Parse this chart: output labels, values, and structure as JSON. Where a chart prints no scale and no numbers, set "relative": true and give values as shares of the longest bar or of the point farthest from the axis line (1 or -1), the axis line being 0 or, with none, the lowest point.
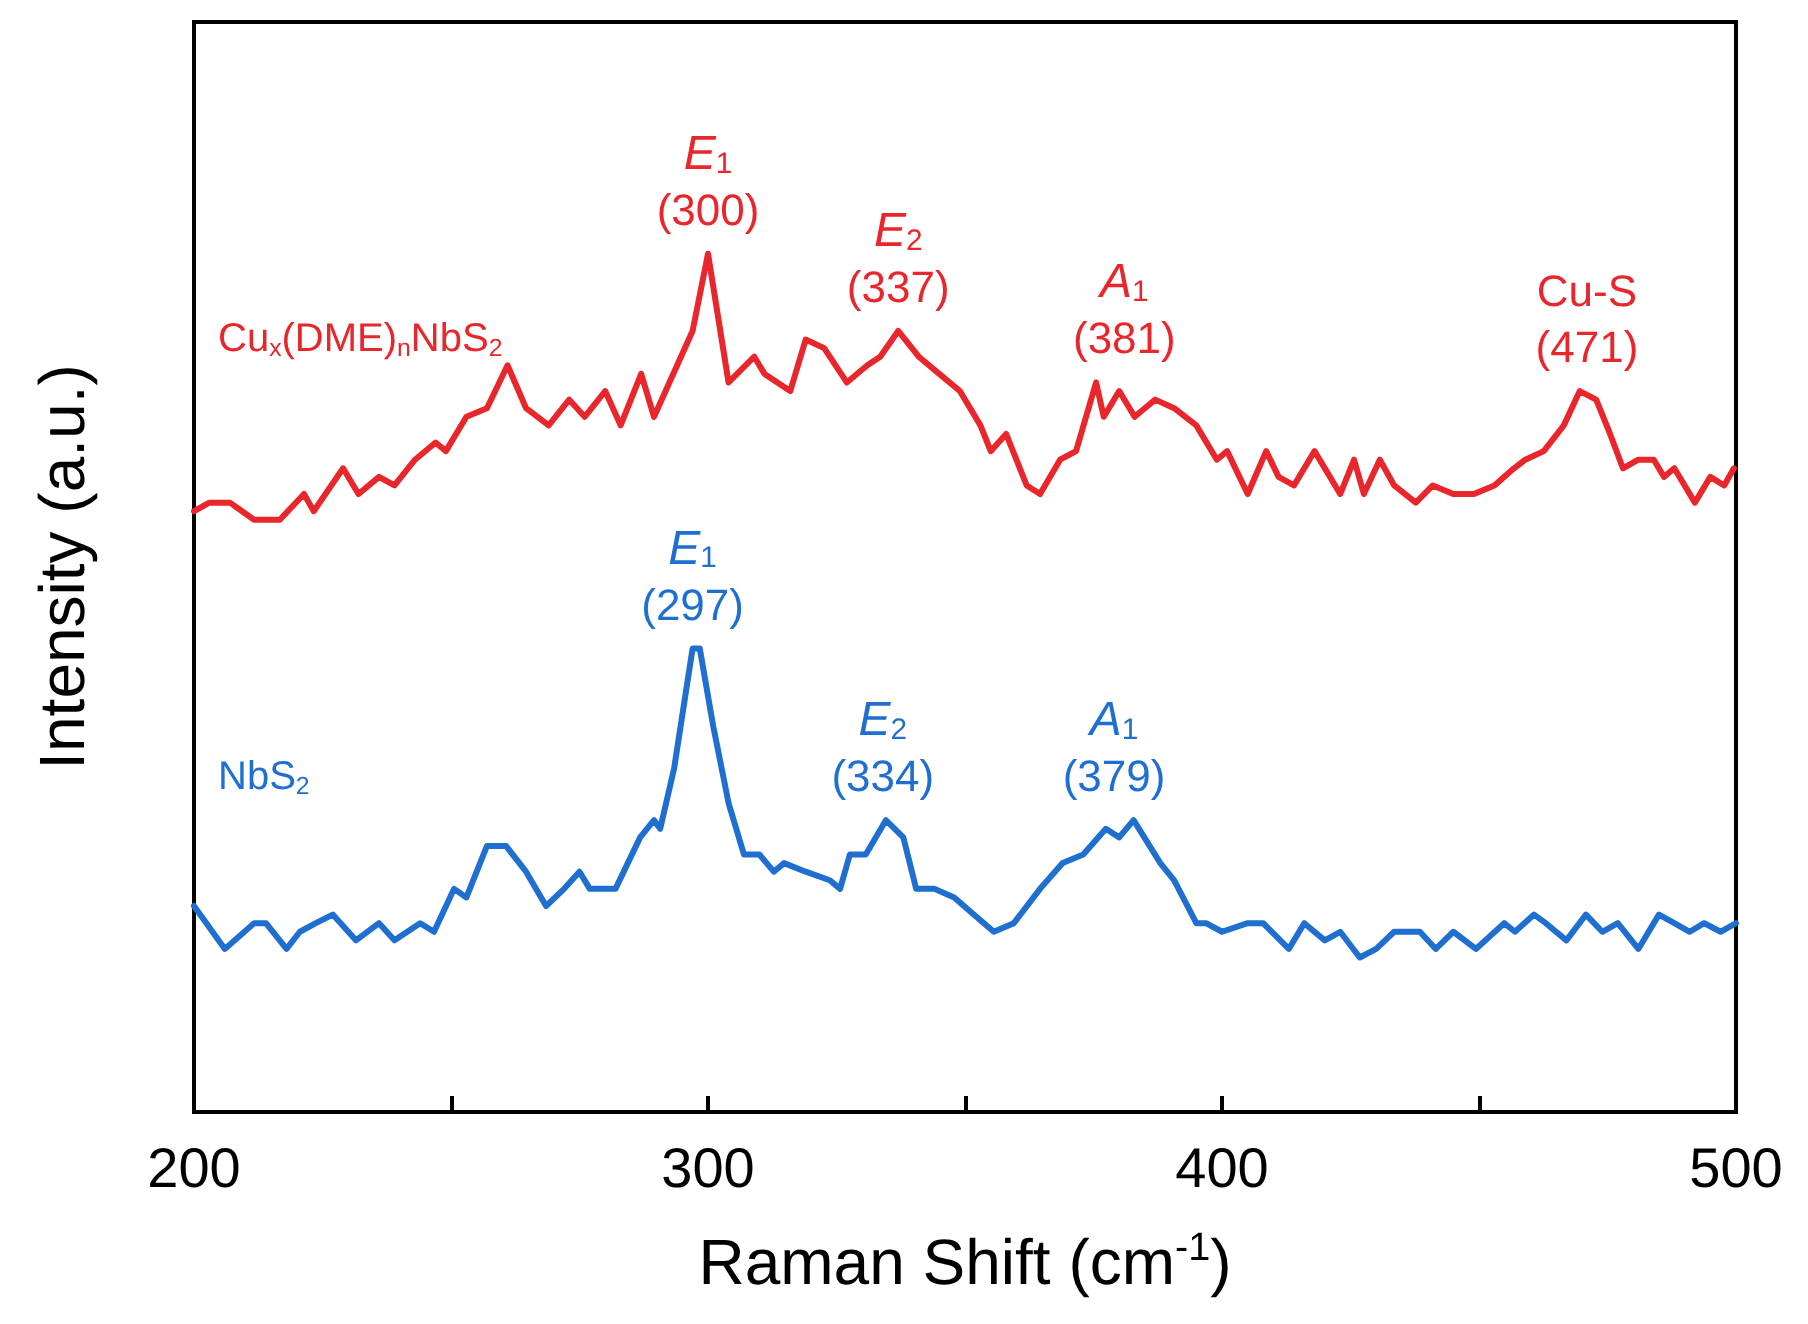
{
  "chart_data": {
    "type": "line",
    "relative": true,
    "xlabel": "Raman Shift (cm$^{-1}$)",
    "ylabel": "Intensity (a.u.)",
    "xlim": [
      200,
      500
    ],
    "xticks": [
      200,
      {
        "value": 250,
        "label": null
      },
      300,
      {
        "value": 350,
        "label": null
      },
      400,
      {
        "value": 450,
        "label": null
      },
      500
    ],
    "marker": "none",
    "series": [
      {
        "name": "Cu$_{x}$(DME)$_{n}$NbS$_{2}$",
        "color": "#e8262b",
        "x": [
          200,
          203,
          207,
          211.7,
          216.7,
          221.4,
          223.3,
          229,
          232,
          236,
          239,
          243,
          247,
          249,
          253,
          257,
          261,
          264.6,
          269,
          273,
          276,
          280,
          283,
          287,
          289.5,
          294,
          297,
          300,
          304,
          309,
          311,
          316,
          319,
          322.6,
          327,
          331,
          333.5,
          337,
          341,
          345,
          349,
          353,
          355,
          358,
          362,
          364.6,
          368.5,
          371.6,
          375.5,
          377,
          380,
          383,
          387,
          390.7,
          395,
          399,
          401,
          405,
          408.6,
          411,
          414,
          418,
          423,
          425.7,
          427.6,
          430.7,
          433.5,
          437.7,
          441,
          445,
          449,
          453,
          456.8,
          459,
          462.6,
          466.5,
          469.6,
          472.8,
          475.5,
          478,
          481,
          484,
          486,
          488,
          492,
          495,
          497.7,
          499.6
        ],
        "values": [
          0.7,
          0.71,
          0.71,
          0.69,
          0.69,
          0.72,
          0.7,
          0.75,
          0.72,
          0.74,
          0.73,
          0.76,
          0.78,
          0.77,
          0.81,
          0.82,
          0.87,
          0.82,
          0.8,
          0.83,
          0.81,
          0.84,
          0.8,
          0.86,
          0.81,
          0.87,
          0.91,
          1.0,
          0.85,
          0.88,
          0.86,
          0.84,
          0.9,
          0.89,
          0.85,
          0.87,
          0.88,
          0.91,
          0.88,
          0.86,
          0.84,
          0.8,
          0.77,
          0.79,
          0.73,
          0.72,
          0.76,
          0.77,
          0.85,
          0.81,
          0.84,
          0.81,
          0.83,
          0.82,
          0.8,
          0.76,
          0.77,
          0.72,
          0.77,
          0.74,
          0.73,
          0.77,
          0.72,
          0.76,
          0.72,
          0.76,
          0.73,
          0.71,
          0.73,
          0.72,
          0.72,
          0.73,
          0.75,
          0.76,
          0.77,
          0.8,
          0.84,
          0.83,
          0.79,
          0.75,
          0.76,
          0.76,
          0.74,
          0.75,
          0.71,
          0.74,
          0.73,
          0.75
        ]
      },
      {
        "name": "NbS$_{2}$",
        "color": "#1f6fd1",
        "x": [
          200,
          206,
          211.7,
          214,
          218,
          220.6,
          223.7,
          227,
          231.5,
          236,
          239,
          244,
          246.7,
          250.6,
          253,
          257,
          260.7,
          264.6,
          268.5,
          272,
          275,
          277,
          279,
          282,
          286.8,
          289.5,
          290.7,
          293.4,
          297,
          298.4,
          301,
          304,
          307,
          310,
          312.8,
          314.8,
          319,
          323.7,
          325.7,
          327.6,
          330.7,
          334.6,
          338,
          340.5,
          344,
          347.9,
          351.7,
          355.6,
          359.5,
          364.6,
          369,
          373,
          377.4,
          380,
          382.8,
          388,
          390.7,
          395,
          396.9,
          400,
          405,
          408,
          413,
          416,
          420,
          423,
          426.8,
          430,
          433.5,
          438.5,
          441.6,
          445,
          449.4,
          454.9,
          457,
          460.7,
          463,
          467,
          470.8,
          474,
          477,
          481,
          485,
          488,
          491,
          493.8,
          497,
          500
        ],
        "values": [
          0.24,
          0.19,
          0.22,
          0.22,
          0.19,
          0.21,
          0.22,
          0.23,
          0.2,
          0.22,
          0.2,
          0.22,
          0.21,
          0.26,
          0.25,
          0.31,
          0.31,
          0.28,
          0.24,
          0.26,
          0.28,
          0.26,
          0.26,
          0.26,
          0.32,
          0.34,
          0.33,
          0.4,
          0.54,
          0.54,
          0.45,
          0.36,
          0.3,
          0.3,
          0.28,
          0.29,
          0.28,
          0.27,
          0.26,
          0.3,
          0.3,
          0.34,
          0.32,
          0.26,
          0.26,
          0.25,
          0.23,
          0.21,
          0.22,
          0.26,
          0.29,
          0.3,
          0.33,
          0.32,
          0.34,
          0.29,
          0.27,
          0.22,
          0.22,
          0.21,
          0.22,
          0.22,
          0.19,
          0.22,
          0.2,
          0.21,
          0.18,
          0.19,
          0.21,
          0.21,
          0.19,
          0.21,
          0.19,
          0.22,
          0.21,
          0.23,
          0.22,
          0.2,
          0.23,
          0.21,
          0.22,
          0.19,
          0.23,
          0.22,
          0.21,
          0.22,
          0.21,
          0.22
        ]
      }
    ],
    "annotations": [
      {
        "text": "E$_{1}$\n(300)",
        "x": 300,
        "y": 1.0
      },
      {
        "text": "E$_{2}$\n(337)",
        "x": 337,
        "y": 0.91
      },
      {
        "text": "A$_{1}$\n(381)",
        "x": 381,
        "y": 0.85
      },
      {
        "text": "Cu-S\n(471)",
        "x": 471,
        "y": 0.84
      },
      {
        "text": "E$_{1}$\n(297)",
        "x": 297,
        "y": 0.54
      },
      {
        "text": "E$_{2}$\n(334)",
        "x": 334,
        "y": 0.34
      },
      {
        "text": "A$_{1}$\n(379)",
        "x": 379,
        "y": 0.34
      }
    ]
  }
}
